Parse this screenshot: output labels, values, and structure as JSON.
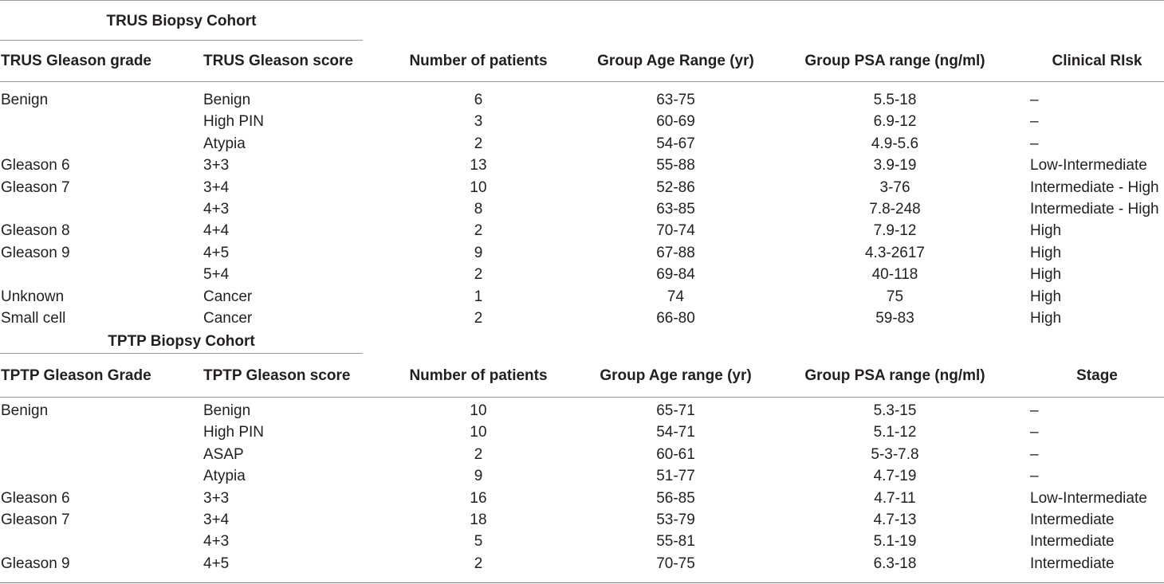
{
  "trus": {
    "cohort_title": "TRUS Biopsy Cohort",
    "headers": [
      "TRUS Gleason grade",
      "TRUS Gleason score",
      "Number of patients",
      "Group Age Range (yr)",
      "Group PSA range (ng/ml)",
      "Clinical RIsk"
    ],
    "rows": [
      [
        "Benign",
        "Benign",
        "6",
        "63-75",
        "5.5-18",
        "–"
      ],
      [
        "",
        "High PIN",
        "3",
        "60-69",
        "6.9-12",
        "–"
      ],
      [
        "",
        "Atypia",
        "2",
        "54-67",
        "4.9-5.6",
        "–"
      ],
      [
        "Gleason 6",
        "3+3",
        "13",
        "55-88",
        "3.9-19",
        "Low-Intermediate"
      ],
      [
        "Gleason 7",
        "3+4",
        "10",
        "52-86",
        "3-76",
        "Intermediate - High"
      ],
      [
        "",
        "4+3",
        "8",
        "63-85",
        "7.8-248",
        "Intermediate - High"
      ],
      [
        "Gleason 8",
        "4+4",
        "2",
        "70-74",
        "7.9-12",
        "High"
      ],
      [
        "Gleason 9",
        "4+5",
        "9",
        "67-88",
        "4.3-2617",
        "High"
      ],
      [
        "",
        "5+4",
        "2",
        "69-84",
        "40-118",
        "High"
      ],
      [
        "Unknown",
        "Cancer",
        "1",
        "74",
        "75",
        "High"
      ],
      [
        "Small cell",
        "Cancer",
        "2",
        "66-80",
        "59-83",
        "High"
      ]
    ]
  },
  "tptp": {
    "cohort_title": "TPTP Biopsy Cohort",
    "headers": [
      "TPTP Gleason Grade",
      "TPTP Gleason score",
      "Number of patients",
      "Group Age range (yr)",
      "Group PSA range (ng/ml)",
      "Stage"
    ],
    "rows": [
      [
        "Benign",
        "Benign",
        "10",
        "65-71",
        "5.3-15",
        "–"
      ],
      [
        "",
        "High PIN",
        "10",
        "54-71",
        "5.1-12",
        "–"
      ],
      [
        "",
        "ASAP",
        "2",
        "60-61",
        "5-3-7.8",
        "–"
      ],
      [
        "",
        "Atypia",
        "9",
        "51-77",
        "4.7-19",
        "–"
      ],
      [
        "Gleason 6",
        "3+3",
        "16",
        "56-85",
        "4.7-11",
        "Low-Intermediate"
      ],
      [
        "Gleason 7",
        "3+4",
        "18",
        "53-79",
        "4.7-13",
        "Intermediate"
      ],
      [
        "",
        "4+3",
        "5",
        "55-81",
        "5.1-19",
        "Intermediate"
      ],
      [
        "Gleason 9",
        "4+5",
        "2",
        "70-75",
        "6.3-18",
        "Intermediate"
      ]
    ]
  }
}
